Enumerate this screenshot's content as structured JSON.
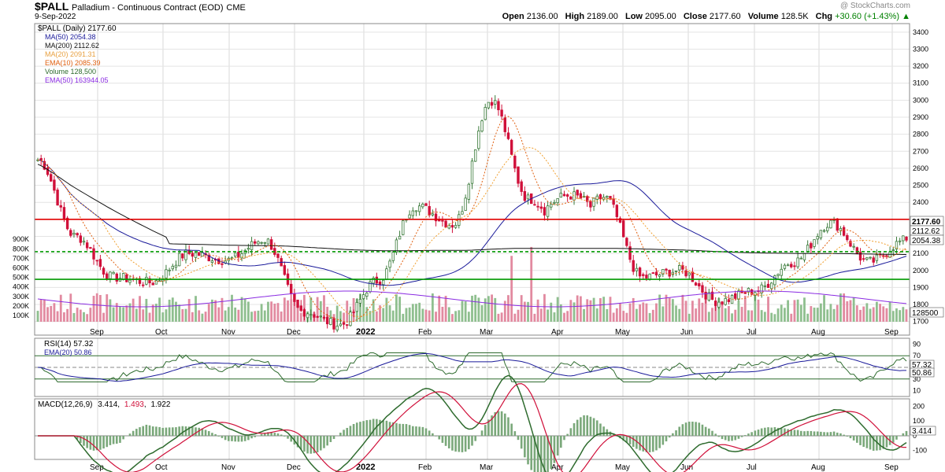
{
  "header": {
    "symbol": "$PALL",
    "name": "Palladium - Continuous Contract (EOD)",
    "exchange": "CME",
    "date": "9-Sep-2022",
    "watermark": "@ StockCharts.com",
    "open_label": "Open",
    "open": "2136.00",
    "high_label": "High",
    "high": "2189.00",
    "low_label": "Low",
    "low": "2095.00",
    "close_label": "Close",
    "close": "2177.60",
    "volume_label": "Volume",
    "volume": "128.5K",
    "chg_label": "Chg",
    "chg": "+30.60 (+1.43%)",
    "chg_icon": "up-triangle-icon"
  },
  "legend": {
    "main": "$PALL (Daily) 2177.60",
    "ma50": "MA(50) 2054.38",
    "ma200": "MA(200) 2112.62",
    "ma20": "MA(20) 2091.31",
    "ema10": "EMA(10) 2085.39",
    "volume": "Volume 128,500",
    "ema50": "EMA(50) 163944.05",
    "rsi": "RSI(14) 57.32",
    "rsi_ema": "EMA(20) 50.86",
    "macd_name": "MACD(12,26,9)",
    "macd_v1": "3.414",
    "macd_v2": "1.493",
    "macd_v3": "1.922"
  },
  "colors": {
    "up": "#3a7a3a",
    "down": "#d0103a",
    "ma50": "#1a1a9a",
    "ma200": "#111111",
    "ma20": "#f0a030",
    "ema10": "#e06010",
    "vol_up": "#8fbf8f",
    "vol_down": "#e28aa0",
    "ema50_vol": "#8a2be2",
    "hline_red": "#e00000",
    "hline_green": "#009900",
    "rsi": "#2e6b2e",
    "macd": "#2e6b2e",
    "signal": "#d0103a"
  },
  "months": [
    "Sep",
    "Oct",
    "Nov",
    "Dec",
    "2022",
    "Feb",
    "Mar",
    "Apr",
    "May",
    "Jun",
    "Jul",
    "Aug",
    "Sep"
  ],
  "chart_data": [
    {
      "type": "candlestick",
      "title": "$PALL (Daily)",
      "ylabel": "",
      "ylim": [
        1620,
        3450
      ],
      "price_ticks": [
        1700,
        1800,
        1900,
        2000,
        2100,
        2200,
        2300,
        2400,
        2500,
        2600,
        2700,
        2800,
        2900,
        3000,
        3100,
        3200,
        3300,
        3400
      ],
      "volume_ticks": [
        "100K",
        "200K",
        "300K",
        "400K",
        "500K",
        "600K",
        "700K",
        "800K",
        "900K"
      ],
      "volume_ylim": [
        0,
        1000000
      ],
      "horizontal_lines": [
        {
          "value": 2300,
          "color": "red",
          "style": "solid"
        },
        {
          "value": 2110,
          "color": "green",
          "style": "dashed"
        },
        {
          "value": 1948,
          "color": "green",
          "style": "solid"
        }
      ],
      "last_labels": [
        "2177.60",
        "2112.62",
        "2054.38",
        "128500"
      ],
      "anchors": [
        {
          "month": "Aug-2021",
          "close": 2650
        },
        {
          "month": "Sep-2021",
          "close": 2200
        },
        {
          "month": "Sep-2021",
          "close": 1960
        },
        {
          "month": "Oct-2021",
          "close": 1930
        },
        {
          "month": "Oct-2021",
          "close": 2100
        },
        {
          "month": "Nov-2021",
          "close": 2060
        },
        {
          "month": "Nov-2021",
          "close": 2180
        },
        {
          "month": "Dec-2021",
          "close": 1760
        },
        {
          "month": "Dec-2021",
          "close": 1680
        },
        {
          "month": "Jan-2022",
          "close": 1940
        },
        {
          "month": "Feb-2022",
          "close": 2380
        },
        {
          "month": "Feb-2022",
          "close": 2270
        },
        {
          "month": "Mar-2022",
          "close": 3000
        },
        {
          "month": "Mar-2022",
          "close": 2420
        },
        {
          "month": "Apr-2022",
          "close": 2240
        },
        {
          "month": "Apr-2022",
          "close": 2430
        },
        {
          "month": "May-2022",
          "close": 1960
        },
        {
          "month": "Jun-2022",
          "close": 2000
        },
        {
          "month": "Jun-2022",
          "close": 1820
        },
        {
          "month": "Jul-2022",
          "close": 1880
        },
        {
          "month": "Jul-2022",
          "close": 2050
        },
        {
          "month": "Aug-2022",
          "close": 2280
        },
        {
          "month": "Aug-2022",
          "close": 2050
        },
        {
          "month": "Sep-2022",
          "close": 2177.6
        }
      ]
    },
    {
      "type": "line",
      "title": "RSI(14)",
      "ylim": [
        0,
        100
      ],
      "ticks": [
        10,
        30,
        50,
        70,
        90
      ],
      "reference_lines": [
        30,
        50,
        70
      ],
      "last_labels": [
        "57.32",
        "50.86"
      ]
    },
    {
      "type": "line",
      "title": "MACD(12,26,9)",
      "ylim": [
        -160,
        250
      ],
      "ticks": [
        -100,
        0,
        100,
        200
      ],
      "last_labels": [
        "3.414"
      ]
    }
  ]
}
